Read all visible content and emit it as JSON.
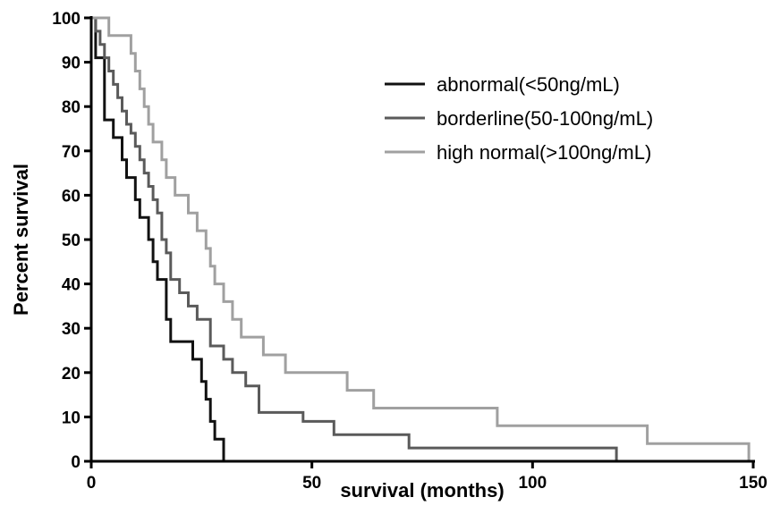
{
  "chart_data": {
    "type": "line",
    "subtype": "kaplan-meier step",
    "xlabel": "survival (months)",
    "ylabel": "Percent survival",
    "xlim": [
      0,
      150
    ],
    "ylim": [
      0,
      100
    ],
    "x_ticks": [
      "0",
      "50",
      "100",
      "150"
    ],
    "y_ticks": [
      "0",
      "10",
      "20",
      "30",
      "40",
      "50",
      "60",
      "70",
      "80",
      "90",
      "100"
    ],
    "grid": false,
    "legend_position": "top-right",
    "series": [
      {
        "name": "abnormal(<50ng/mL)",
        "color": "#111111",
        "x": [
          0,
          1,
          3,
          5,
          7,
          8,
          10,
          11,
          13,
          14,
          15,
          17,
          18,
          23,
          25,
          26,
          27,
          28,
          30,
          32
        ],
        "y": [
          100,
          91,
          77,
          73,
          68,
          64,
          59,
          55,
          50,
          45,
          41,
          32,
          27,
          23,
          18,
          14,
          9,
          5,
          0,
          0
        ]
      },
      {
        "name": "borderline(50-100ng/mL)",
        "color": "#5a5a5a",
        "x": [
          0,
          1,
          2,
          3,
          4,
          5,
          6,
          7,
          8,
          9,
          10,
          11,
          12,
          13,
          14,
          15,
          16,
          17,
          18,
          20,
          22,
          24,
          27,
          30,
          32,
          35,
          38,
          48,
          55,
          72,
          119
        ],
        "y": [
          100,
          97,
          94,
          91,
          88,
          85,
          82,
          79,
          76,
          74,
          71,
          68,
          65,
          62,
          59,
          56,
          50,
          47,
          41,
          38,
          35,
          32,
          26,
          23,
          20,
          17,
          11,
          9,
          6,
          3,
          0
        ]
      },
      {
        "name": "high normal(>100ng/mL)",
        "color": "#a0a0a0",
        "x": [
          0,
          4,
          9,
          10,
          11,
          12,
          13,
          14,
          16,
          17,
          19,
          22,
          24,
          26,
          27,
          28,
          30,
          32,
          34,
          39,
          44,
          58,
          64,
          92,
          126,
          149
        ],
        "y": [
          100,
          96,
          92,
          88,
          84,
          80,
          76,
          72,
          68,
          64,
          60,
          56,
          52,
          48,
          44,
          40,
          36,
          32,
          28,
          24,
          20,
          16,
          12,
          8,
          4,
          0
        ]
      }
    ]
  }
}
